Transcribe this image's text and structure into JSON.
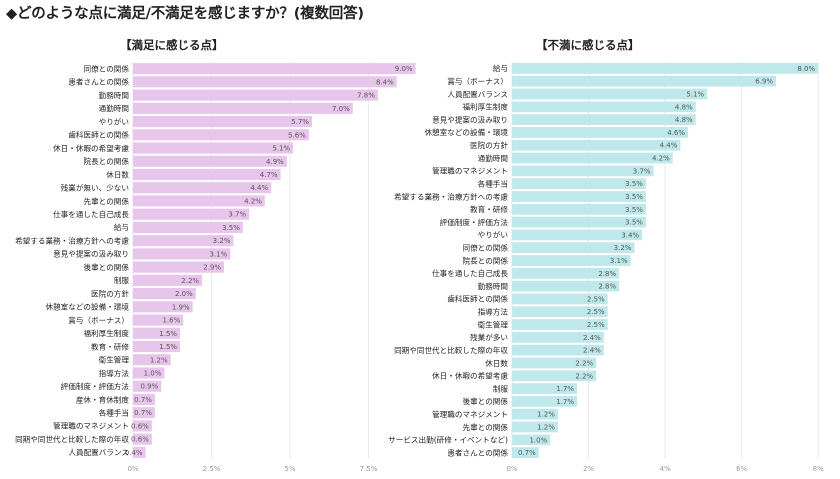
{
  "header": {
    "title": "◆どのような点に満足/不満足を感じますか？(複数回答)"
  },
  "chart_data": [
    {
      "type": "bar",
      "orientation": "horizontal",
      "title": "【満足に感じる点】",
      "color": "#e8c6ec",
      "categories": [
        "同僚との関係",
        "患者さんとの関係",
        "勤務時間",
        "通勤時間",
        "やりがい",
        "歯科医師との関係",
        "休日・休暇の希望考慮",
        "院長との関係",
        "休日数",
        "残業が無い、少ない",
        "先輩との関係",
        "仕事を通した自己成長",
        "給与",
        "希望する業務・治療方針への考慮",
        "意見や提案の汲み取り",
        "後輩との関係",
        "制服",
        "医院の方針",
        "休憩室などの設備・環境",
        "賞与（ボーナス）",
        "福利厚生制度",
        "教育・研修",
        "衛生管理",
        "指導方法",
        "評価制度・評価方法",
        "産休・育休制度",
        "各種手当",
        "管理職のマネジメント",
        "同期や同世代と比較した際の年収",
        "人員配置バランス"
      ],
      "values": [
        9.0,
        8.4,
        7.8,
        7.0,
        5.7,
        5.6,
        5.1,
        4.9,
        4.7,
        4.4,
        4.2,
        3.7,
        3.5,
        3.2,
        3.1,
        2.9,
        2.2,
        2.0,
        1.9,
        1.6,
        1.5,
        1.5,
        1.2,
        1.0,
        0.9,
        0.7,
        0.7,
        0.6,
        0.6,
        0.4
      ],
      "value_labels": [
        "9.0%",
        "8.4%",
        "7.8%",
        "7.0%",
        "5.7%",
        "5.6%",
        "5.1%",
        "4.9%",
        "4.7%",
        "4.4%",
        "4.2%",
        "3.7%",
        "3.5%",
        "3.2%",
        "3.1%",
        "2.9%",
        "2.2%",
        "2.0%",
        "1.9%",
        "1.6%",
        "1.5%",
        "1.5%",
        "1.2%",
        "1.0%",
        "0.9%",
        "0.7%",
        "0.7%",
        "0.6%",
        "0.6%",
        "0.4%"
      ],
      "xlim": [
        0,
        9.3
      ],
      "xticks": [
        0,
        2.5,
        5,
        7.5
      ],
      "xtick_labels": [
        "0%",
        "2.5%",
        "5%",
        "7.5%"
      ],
      "grid": true
    },
    {
      "type": "bar",
      "orientation": "horizontal",
      "title": "【不満に感じる点】",
      "color": "#bfe8ea",
      "categories": [
        "給与",
        "賞与（ボーナス）",
        "人員配置バランス",
        "福利厚生制度",
        "意見や提案の汲み取り",
        "休憩室などの設備・環境",
        "医院の方針",
        "通勤時間",
        "管理職のマネジメント",
        "各種手当",
        "希望する業務・治療方針への考慮",
        "教育・研修",
        "評価制度・評価方法",
        "やりがい",
        "同僚との関係",
        "院長との関係",
        "仕事を通した自己成長",
        "勤務時間",
        "歯科医師との関係",
        "指導方法",
        "衛生管理",
        "残業が多い",
        "同期や同世代と比較した際の年収",
        "休日数",
        "休日・休暇の希望考慮",
        "制服",
        "後輩との関係",
        "管理職のマネジメント",
        "先輩との関係",
        "サービス出勤(研修・イベントなど)",
        "患者さんとの関係"
      ],
      "values": [
        8.0,
        6.9,
        5.1,
        4.8,
        4.8,
        4.6,
        4.4,
        4.2,
        3.7,
        3.5,
        3.5,
        3.5,
        3.5,
        3.4,
        3.2,
        3.1,
        2.8,
        2.8,
        2.5,
        2.5,
        2.5,
        2.4,
        2.4,
        2.2,
        2.2,
        1.7,
        1.7,
        1.2,
        1.2,
        1.0,
        0.7
      ],
      "value_labels": [
        "8.0%",
        "6.9%",
        "5.1%",
        "4.8%",
        "4.8%",
        "4.6%",
        "4.4%",
        "4.2%",
        "3.7%",
        "3.5%",
        "3.5%",
        "3.5%",
        "3.5%",
        "3.4%",
        "3.2%",
        "3.1%",
        "2.8%",
        "2.8%",
        "2.5%",
        "2.5%",
        "2.5%",
        "2.4%",
        "2.4%",
        "2.2%",
        "2.2%",
        "1.7%",
        "1.7%",
        "1.2%",
        "1.2%",
        "1.0%",
        "0.7%"
      ],
      "xlim": [
        0,
        8.1
      ],
      "xticks": [
        0,
        2,
        4,
        6,
        8
      ],
      "xtick_labels": [
        "0%",
        "2%",
        "4%",
        "6%",
        "8%"
      ],
      "grid": true
    }
  ]
}
